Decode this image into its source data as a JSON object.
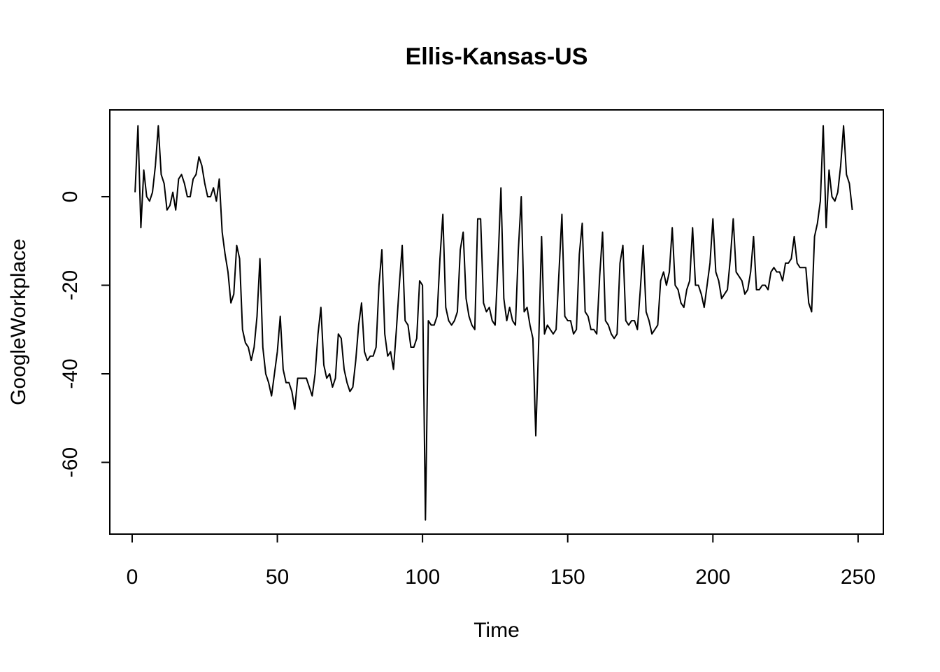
{
  "chart_data": {
    "type": "line",
    "title": "Ellis-Kansas-US",
    "xlabel": "Time",
    "ylabel": "GoogleWorkplace",
    "xlim": [
      -7.7,
      258.7
    ],
    "ylim": [
      -76.2,
      19.6
    ],
    "xticks": [
      0,
      50,
      100,
      150,
      200,
      250
    ],
    "xtick_labels": [
      "0",
      "50",
      "100",
      "150",
      "200",
      "250"
    ],
    "yticks": [
      0,
      -20,
      -40,
      -60
    ],
    "ytick_labels": [
      "0",
      "-20",
      "-40",
      "-60"
    ],
    "grid": false,
    "legend": "none",
    "color": "#000000",
    "series": [
      {
        "x": [
          1,
          2,
          3,
          4,
          5,
          6,
          7,
          8,
          9,
          10,
          11,
          12,
          13,
          14,
          15,
          16,
          17,
          18,
          19,
          20,
          21,
          22,
          23,
          24,
          25,
          26,
          27,
          28,
          29,
          30,
          31,
          32,
          33,
          34,
          35,
          36,
          37,
          38,
          39,
          40,
          41,
          42,
          43,
          44,
          45,
          46,
          47,
          48,
          49,
          50,
          51,
          52,
          53,
          54,
          55,
          56,
          57,
          58,
          59,
          60,
          61,
          62,
          63,
          64,
          65,
          66,
          67,
          68,
          69,
          70,
          71,
          72,
          73,
          74,
          75,
          76,
          77,
          78,
          79,
          80,
          81,
          82,
          83,
          84,
          85,
          86,
          87,
          88,
          89,
          90,
          91,
          92,
          93,
          94,
          95,
          96,
          97,
          98,
          99,
          100,
          101,
          102,
          103,
          104,
          105,
          106,
          107,
          108,
          109,
          110,
          111,
          112,
          113,
          114,
          115,
          116,
          117,
          118,
          119,
          120,
          121,
          122,
          123,
          124,
          125,
          126,
          127,
          128,
          129,
          130,
          131,
          132,
          133,
          134,
          135,
          136,
          137,
          138,
          139,
          140,
          141,
          142,
          143,
          144,
          145,
          146,
          147,
          148,
          149,
          150,
          151,
          152,
          153,
          154,
          155,
          156,
          157,
          158,
          159,
          160,
          161,
          162,
          163,
          164,
          165,
          166,
          167,
          168,
          169,
          170,
          171,
          172,
          173,
          174,
          175,
          176,
          177,
          178,
          179,
          180,
          181,
          182,
          183,
          184,
          185,
          186,
          187,
          188,
          189,
          190,
          191,
          192,
          193,
          194,
          195,
          196,
          197,
          198,
          199,
          200,
          201,
          202,
          203,
          204,
          205,
          206,
          207,
          208,
          209,
          210,
          211,
          212,
          213,
          214,
          215,
          216,
          217,
          218,
          219,
          220,
          221,
          222,
          223,
          224,
          225,
          226,
          227,
          228,
          229,
          230,
          231,
          232,
          233,
          234,
          235,
          236,
          237,
          238,
          239,
          240,
          241,
          242,
          243,
          244,
          245,
          246,
          247,
          248
        ],
        "values": [
          1,
          16,
          -7,
          6,
          0,
          -1,
          1,
          7,
          16,
          5,
          3,
          -3,
          -2,
          1,
          -3,
          4,
          5,
          3,
          0,
          0,
          4,
          5,
          9,
          7,
          3,
          0,
          0,
          2,
          -1,
          4,
          -8,
          -13,
          -17,
          -24,
          -22,
          -11,
          -14,
          -30,
          -33,
          -34,
          -37,
          -34,
          -27,
          -14,
          -34,
          -40,
          -42,
          -45,
          -40,
          -35,
          -27,
          -39,
          -42,
          -42,
          -44,
          -48,
          -41,
          -41,
          -41,
          -41,
          -43,
          -45,
          -40,
          -31,
          -25,
          -38,
          -41,
          -40,
          -43,
          -41,
          -31,
          -32,
          -39,
          -42,
          -44,
          -43,
          -37,
          -29,
          -24,
          -35,
          -37,
          -36,
          -36,
          -34,
          -20,
          -12,
          -31,
          -36,
          -35,
          -39,
          -30,
          -20,
          -11,
          -28,
          -29,
          -34,
          -34,
          -32,
          -19,
          -20,
          -73,
          -28,
          -29,
          -29,
          -27,
          -14,
          -4,
          -25,
          -28,
          -29,
          -28,
          -26,
          -12,
          -8,
          -23,
          -27,
          -29,
          -30,
          -5,
          -5,
          -24,
          -26,
          -25,
          -28,
          -29,
          -15,
          2,
          -23,
          -28,
          -25,
          -28,
          -29,
          -12,
          0,
          -26,
          -25,
          -29,
          -32,
          -54,
          -33,
          -9,
          -31,
          -29,
          -30,
          -31,
          -30,
          -17,
          -4,
          -27,
          -28,
          -28,
          -31,
          -30,
          -13,
          -6,
          -26,
          -27,
          -30,
          -30,
          -31,
          -18,
          -8,
          -28,
          -29,
          -31,
          -32,
          -31,
          -15,
          -11,
          -28,
          -29,
          -28,
          -28,
          -30,
          -21,
          -11,
          -26,
          -28,
          -31,
          -30,
          -29,
          -19,
          -17,
          -20,
          -17,
          -7,
          -20,
          -21,
          -24,
          -25,
          -21,
          -19,
          -7,
          -20,
          -20,
          -22,
          -25,
          -20,
          -15,
          -5,
          -17,
          -19,
          -23,
          -22,
          -21,
          -14,
          -5,
          -17,
          -18,
          -19,
          -22,
          -21,
          -17,
          -9,
          -21,
          -21,
          -20,
          -20,
          -21,
          -17,
          -16,
          -17,
          -17,
          -19,
          -15,
          -15,
          -14,
          -9,
          -15,
          -16,
          -16,
          -16,
          -24,
          -26,
          -9,
          -6,
          -1,
          16,
          -7,
          6,
          0,
          -1,
          1,
          7,
          16,
          5,
          3,
          -3
        ]
      }
    ]
  }
}
